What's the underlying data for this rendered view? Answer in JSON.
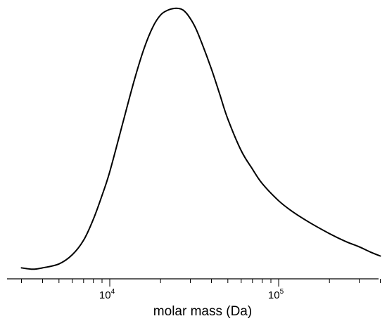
{
  "chart_data": {
    "type": "line",
    "title": "",
    "xlabel": "molar mass (Da)",
    "ylabel": "",
    "x_scale": "log",
    "xlim": [
      2900,
      420000
    ],
    "ylim": [
      0,
      1
    ],
    "grid": false,
    "x_ticks": [
      {
        "base": "10",
        "exp": "4",
        "value": 10000
      },
      {
        "base": "10",
        "exp": "5",
        "value": 100000
      }
    ],
    "series": [
      {
        "x": [
          3000,
          3500,
          4000,
          5000,
          6000,
          7000,
          8000,
          9000,
          10000,
          12000,
          14000,
          16000,
          18000,
          20000,
          22000,
          24000,
          25500,
          27000,
          29000,
          32000,
          35000,
          40000,
          45000,
          50000,
          60000,
          70000,
          80000,
          100000,
          120000,
          150000,
          200000,
          250000,
          300000,
          350000,
          400000
        ],
        "y": [
          0.015,
          0.01,
          0.015,
          0.03,
          0.065,
          0.12,
          0.2,
          0.29,
          0.38,
          0.57,
          0.73,
          0.85,
          0.93,
          0.975,
          0.993,
          1.0,
          1.0,
          0.995,
          0.975,
          0.93,
          0.87,
          0.77,
          0.67,
          0.58,
          0.46,
          0.39,
          0.335,
          0.27,
          0.23,
          0.19,
          0.145,
          0.115,
          0.095,
          0.075,
          0.06
        ]
      }
    ]
  }
}
